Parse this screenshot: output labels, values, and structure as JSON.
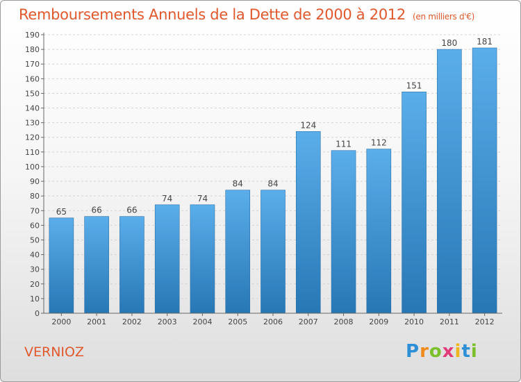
{
  "title": "Remboursements Annuels de la Dette de 2000 à 2012",
  "subtitle": "(en milliers d'€)",
  "footer_name": "VERNIOZ",
  "brand": {
    "letters": [
      "P",
      "r",
      "o",
      "x",
      "i",
      "t",
      "i"
    ],
    "colors": [
      "#2d8fd6",
      "#f08a1a",
      "#7bbf2a",
      "#e23b7a",
      "#f0b51a",
      "#2d8fd6",
      "#7bbf2a"
    ]
  },
  "colors": {
    "accent": "#e0582b",
    "bar_top": "#5aaeea",
    "bar_bottom": "#2777b5"
  },
  "chart_data": {
    "type": "bar",
    "categories": [
      "2000",
      "2001",
      "2002",
      "2003",
      "2004",
      "2005",
      "2006",
      "2007",
      "2008",
      "2009",
      "2010",
      "2011",
      "2012"
    ],
    "values": [
      65,
      66,
      66,
      74,
      74,
      84,
      84,
      124,
      111,
      112,
      151,
      180,
      181
    ],
    "ylim": [
      0,
      190
    ],
    "yticks": [
      0,
      10,
      20,
      30,
      40,
      50,
      60,
      70,
      80,
      90,
      100,
      110,
      120,
      130,
      140,
      150,
      160,
      170,
      180,
      190
    ],
    "grid": true
  }
}
